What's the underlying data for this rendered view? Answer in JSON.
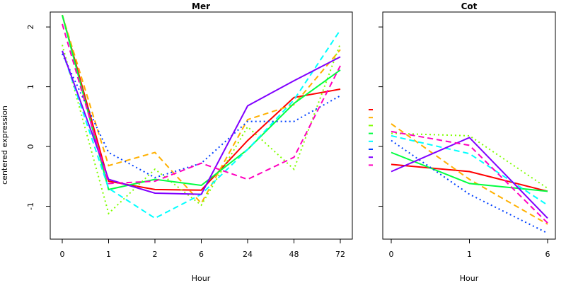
{
  "chart_data": {
    "type": "line",
    "ylabel": "centered expression",
    "ylim": [
      -1.55,
      2.25
    ],
    "yticks": [
      -1,
      0,
      1,
      2
    ],
    "panels": [
      {
        "title": "Mer",
        "xlabel": "Hour",
        "categories": [
          "0",
          "1",
          "2",
          "6",
          "24",
          "48",
          "72"
        ],
        "series": [
          {
            "color": "#FF0000",
            "dash": "solid",
            "values": [
              2.2,
              -0.58,
              -0.72,
              -0.73,
              0.1,
              0.82,
              0.96
            ]
          },
          {
            "color": "#FFB000",
            "dash": "dashed",
            "values": [
              2.2,
              -0.32,
              -0.1,
              -0.95,
              0.45,
              0.7,
              1.62
            ]
          },
          {
            "color": "#80FF00",
            "dash": "dotted",
            "values": [
              1.7,
              -1.12,
              -0.38,
              -0.98,
              0.33,
              -0.38,
              1.72
            ]
          },
          {
            "color": "#00FF40",
            "dash": "solid",
            "values": [
              2.2,
              -0.72,
              -0.55,
              -0.65,
              -0.05,
              0.72,
              1.28
            ]
          },
          {
            "color": "#00FFFF",
            "dash": "dashed",
            "values": [
              1.6,
              -0.7,
              -1.2,
              -0.8,
              -0.05,
              0.78,
              1.95
            ]
          },
          {
            "color": "#0040FF",
            "dash": "dotted",
            "values": [
              1.55,
              -0.1,
              -0.52,
              -0.28,
              0.42,
              0.42,
              0.85
            ]
          },
          {
            "color": "#8000FF",
            "dash": "solid",
            "values": [
              1.6,
              -0.55,
              -0.78,
              -0.8,
              0.68,
              1.1,
              1.5
            ]
          },
          {
            "color": "#FF00BF",
            "dash": "dashed",
            "values": [
              2.05,
              -0.62,
              -0.58,
              -0.28,
              -0.55,
              -0.18,
              1.35
            ]
          }
        ]
      },
      {
        "title": "Cot",
        "xlabel": "Hour",
        "categories": [
          "0",
          "1",
          "6"
        ],
        "series": [
          {
            "color": "#FF0000",
            "dash": "solid",
            "values": [
              -0.3,
              -0.42,
              -0.75
            ]
          },
          {
            "color": "#FFB000",
            "dash": "dashed",
            "values": [
              0.38,
              -0.55,
              -1.3
            ]
          },
          {
            "color": "#80FF00",
            "dash": "dotted",
            "values": [
              0.22,
              0.18,
              -0.7
            ]
          },
          {
            "color": "#00FF40",
            "dash": "solid",
            "values": [
              -0.1,
              -0.62,
              -0.75
            ]
          },
          {
            "color": "#00FFFF",
            "dash": "dashed",
            "values": [
              0.18,
              -0.12,
              -0.98
            ]
          },
          {
            "color": "#0040FF",
            "dash": "dotted",
            "values": [
              0.1,
              -0.8,
              -1.45
            ]
          },
          {
            "color": "#8000FF",
            "dash": "solid",
            "values": [
              -0.42,
              0.15,
              -1.2
            ]
          },
          {
            "color": "#FF00BF",
            "dash": "dashed",
            "values": [
              0.25,
              0.02,
              -1.28
            ]
          }
        ]
      }
    ],
    "legend": {
      "placement": "between-panels",
      "entries": [
        {
          "color": "#FF0000",
          "dash": "solid"
        },
        {
          "color": "#FFB000",
          "dash": "dashed"
        },
        {
          "color": "#80FF00",
          "dash": "dotted"
        },
        {
          "color": "#00FF40",
          "dash": "solid"
        },
        {
          "color": "#00FFFF",
          "dash": "dashed"
        },
        {
          "color": "#0040FF",
          "dash": "dotted"
        },
        {
          "color": "#8000FF",
          "dash": "solid"
        },
        {
          "color": "#FF00BF",
          "dash": "dashed"
        }
      ]
    }
  }
}
